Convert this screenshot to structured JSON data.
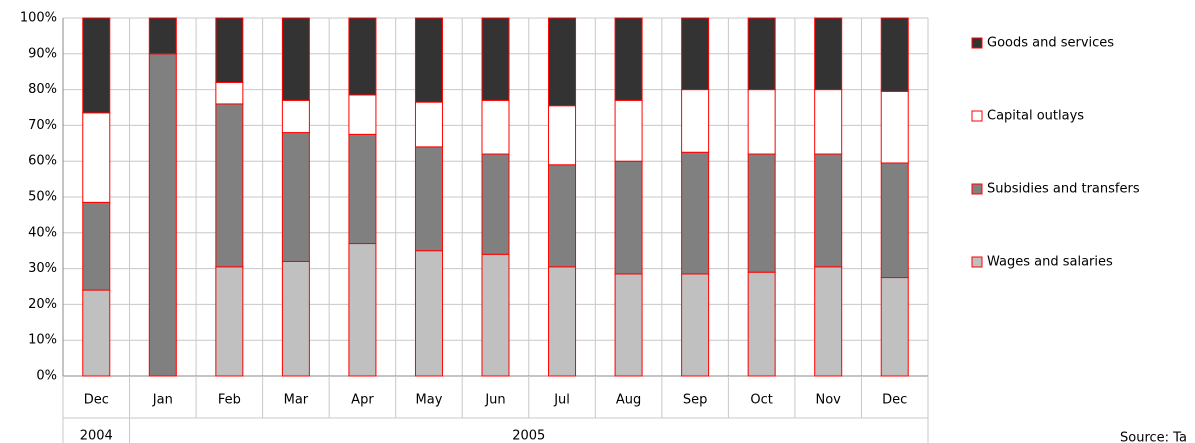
{
  "chart_data": {
    "type": "stacked_bar",
    "categories": [
      "Dec",
      "Jan",
      "Feb",
      "Mar",
      "Apr",
      "May",
      "Jun",
      "Jul",
      "Aug",
      "Sep",
      "Oct",
      "Nov",
      "Dec"
    ],
    "years": [
      "2004",
      "2005",
      null,
      null,
      null,
      null,
      null,
      null,
      null,
      null,
      null,
      null,
      null
    ],
    "series": [
      {
        "name": "Wages and salaries",
        "color": "#c0c0c0",
        "values": [
          24,
          0,
          30.5,
          32,
          37,
          35,
          34,
          30.5,
          28.5,
          28.5,
          29,
          30.5,
          27.5
        ]
      },
      {
        "name": "Subsidies and transfers",
        "color": "#808080",
        "values": [
          24.5,
          90,
          45.5,
          36,
          30.5,
          29,
          28,
          28.5,
          31.5,
          34,
          33,
          31.5,
          32
        ]
      },
      {
        "name": "Capital outlays",
        "color": "#ffffff",
        "values": [
          25,
          0,
          6,
          9,
          11,
          12.5,
          15,
          16.5,
          17,
          17.5,
          18,
          18,
          20
        ]
      },
      {
        "name": "Goods and services",
        "color": "#333333",
        "values": [
          26.5,
          10,
          18,
          23,
          21.5,
          23.5,
          23,
          24.5,
          23,
          20,
          20,
          20,
          20.5
        ]
      }
    ],
    "bar_edge_color": "#ff0000",
    "ylim": [
      0,
      100
    ],
    "yticks": [
      {
        "value": 0,
        "label": "0%"
      },
      {
        "value": 10,
        "label": "10%"
      },
      {
        "value": 20,
        "label": "20%"
      },
      {
        "value": 30,
        "label": "30%"
      },
      {
        "value": 40,
        "label": "40%"
      },
      {
        "value": 50,
        "label": "50%"
      },
      {
        "value": 60,
        "label": "60%"
      },
      {
        "value": 70,
        "label": "70%"
      },
      {
        "value": 80,
        "label": "80%"
      },
      {
        "value": 90,
        "label": "90%"
      },
      {
        "value": 100,
        "label": "100%"
      }
    ],
    "grid": true,
    "legend": "right",
    "source": "Source: Ta"
  }
}
